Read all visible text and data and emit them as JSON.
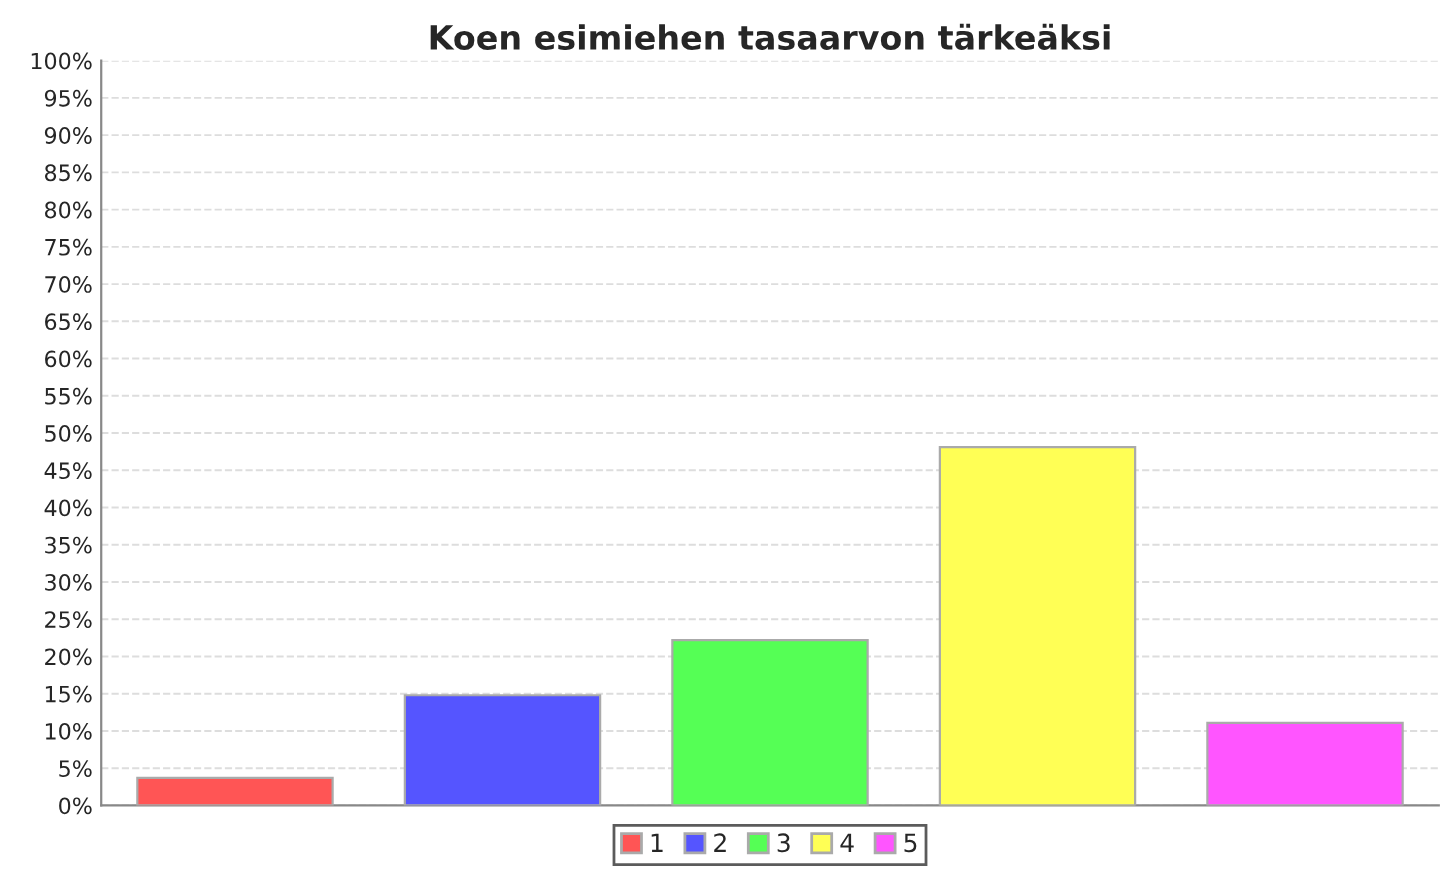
{
  "chart_data": {
    "type": "bar",
    "title": "Koen esimiehen tasaarvon tärkeäksi",
    "categories": [
      null
    ],
    "series": [
      {
        "name": "1",
        "color": "#ff5555",
        "values": [
          3.7
        ]
      },
      {
        "name": "2",
        "color": "#5555ff",
        "values": [
          14.8
        ]
      },
      {
        "name": "3",
        "color": "#55ff55",
        "values": [
          22.2
        ]
      },
      {
        "name": "4",
        "color": "#ffff55",
        "values": [
          48.1
        ]
      },
      {
        "name": "5",
        "color": "#ff55ff",
        "values": [
          11.1
        ]
      }
    ],
    "ylim": [
      0,
      100
    ],
    "yticks": [
      {
        "value": 0,
        "label": "0%"
      },
      {
        "value": 5,
        "label": "5%"
      },
      {
        "value": 10,
        "label": "10%"
      },
      {
        "value": 15,
        "label": "15%"
      },
      {
        "value": 20,
        "label": "20%"
      },
      {
        "value": 25,
        "label": "25%"
      },
      {
        "value": 30,
        "label": "30%"
      },
      {
        "value": 35,
        "label": "35%"
      },
      {
        "value": 40,
        "label": "40%"
      },
      {
        "value": 45,
        "label": "45%"
      },
      {
        "value": 50,
        "label": "50%"
      },
      {
        "value": 55,
        "label": "55%"
      },
      {
        "value": 60,
        "label": "60%"
      },
      {
        "value": 65,
        "label": "65%"
      },
      {
        "value": 70,
        "label": "70%"
      },
      {
        "value": 75,
        "label": "75%"
      },
      {
        "value": 80,
        "label": "80%"
      },
      {
        "value": 85,
        "label": "85%"
      },
      {
        "value": 90,
        "label": "90%"
      },
      {
        "value": 95,
        "label": "95%"
      },
      {
        "value": 100,
        "label": "100%"
      }
    ],
    "grid": "y",
    "legend": "bottom"
  }
}
